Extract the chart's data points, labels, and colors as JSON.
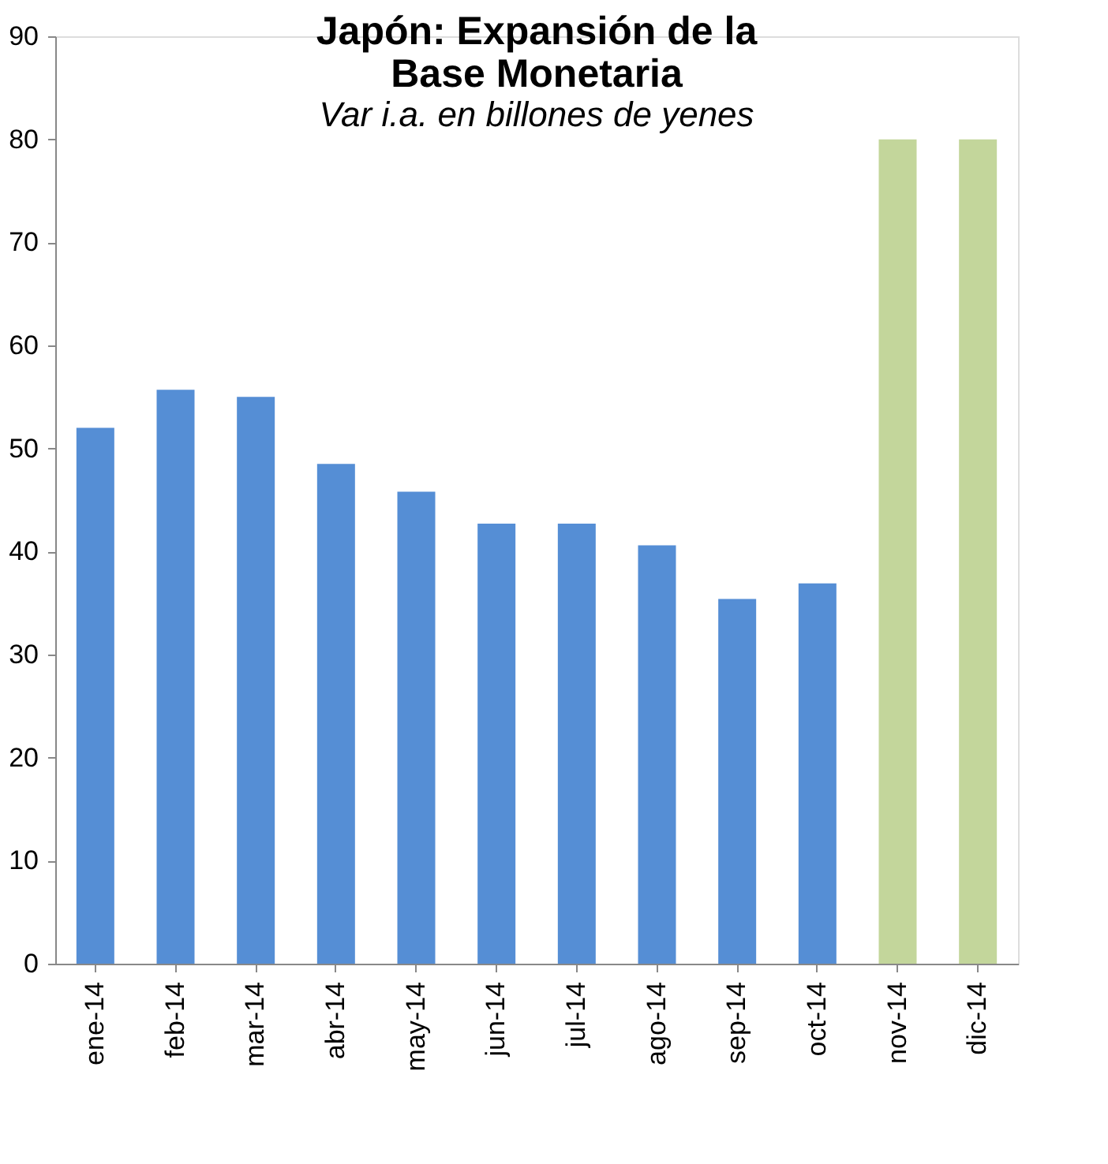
{
  "chart_data": {
    "type": "bar",
    "title": "Japón: Expansión de la Base Monetaria",
    "subtitle": "Var i.a. en billones de yenes",
    "categories": [
      "ene-14",
      "feb-14",
      "mar-14",
      "abr-14",
      "may-14",
      "jun-14",
      "jul-14",
      "ago-14",
      "sep-14",
      "oct-14",
      "nov-14",
      "dic-14"
    ],
    "values": [
      52.0,
      55.7,
      55.0,
      48.5,
      45.8,
      42.7,
      42.7,
      40.6,
      35.4,
      36.9,
      80,
      80
    ],
    "colors": [
      "#558ed5",
      "#558ed5",
      "#558ed5",
      "#558ed5",
      "#558ed5",
      "#558ed5",
      "#558ed5",
      "#558ed5",
      "#558ed5",
      "#558ed5",
      "#c3d69b",
      "#c3d69b"
    ],
    "ylim": [
      0,
      90
    ],
    "yticks": [
      0,
      10,
      20,
      30,
      40,
      50,
      60,
      70,
      80,
      90
    ],
    "grid": false
  }
}
